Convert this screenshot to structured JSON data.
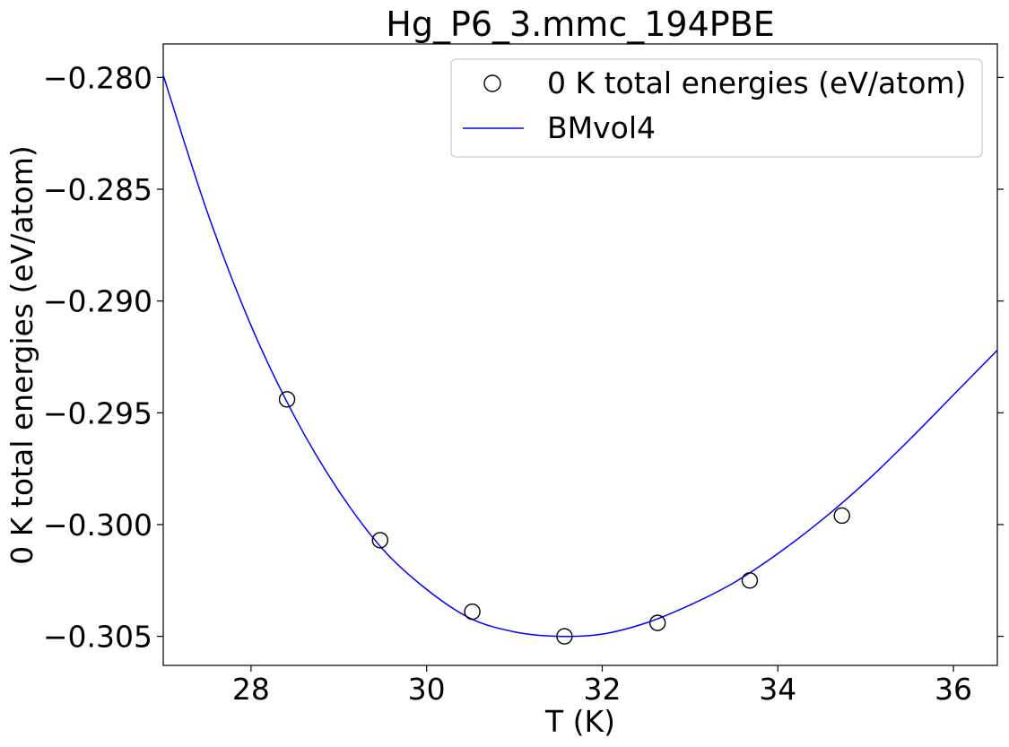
{
  "chart_data": {
    "type": "scatter",
    "title": "Hg_P6_3.mmc_194PBE",
    "xlabel": "T (K)",
    "ylabel": "0 K total energies (eV/atom)",
    "xlim": [
      27.0,
      36.5
    ],
    "ylim": [
      -0.3063,
      -0.2785
    ],
    "xticks": [
      28,
      30,
      32,
      34,
      36
    ],
    "xtick_labels": [
      "28",
      "30",
      "32",
      "34",
      "36"
    ],
    "yticks": [
      -0.28,
      -0.285,
      -0.29,
      -0.295,
      -0.3,
      -0.305
    ],
    "ytick_labels": [
      "−0.280",
      "−0.285",
      "−0.290",
      "−0.295",
      "−0.300",
      "−0.305"
    ],
    "grid": false,
    "legend_position": "top-right",
    "series": [
      {
        "name": "0 K total energies (eV/atom)",
        "kind": "scatter",
        "marker": "open-circle",
        "color": "#000000",
        "x": [
          28.41,
          29.47,
          30.52,
          31.57,
          32.63,
          33.68,
          34.73
        ],
        "y": [
          -0.2944,
          -0.3007,
          -0.3039,
          -0.305,
          -0.3044,
          -0.3025,
          -0.2996
        ]
      },
      {
        "name": "BMvol4",
        "kind": "line",
        "color": "#0000ff",
        "x": [
          27.0,
          27.5,
          28.0,
          28.5,
          29.0,
          29.5,
          30.0,
          30.5,
          31.0,
          31.5,
          32.0,
          32.5,
          33.0,
          33.5,
          34.0,
          34.5,
          35.0,
          35.5,
          36.0,
          36.5
        ],
        "y": [
          -0.2799,
          -0.286,
          -0.2911,
          -0.2952,
          -0.2985,
          -0.3011,
          -0.3029,
          -0.3042,
          -0.3048,
          -0.305,
          -0.3049,
          -0.3044,
          -0.3036,
          -0.3026,
          -0.3013,
          -0.2998,
          -0.2981,
          -0.2962,
          -0.2942,
          -0.2922
        ]
      }
    ]
  }
}
